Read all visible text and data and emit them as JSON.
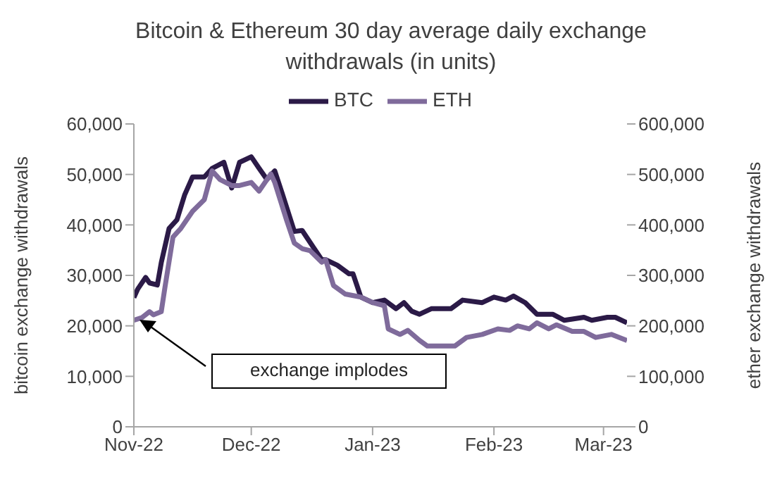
{
  "chart_data": {
    "type": "line",
    "title": "Bitcoin & Ethereum 30 day average daily exchange withdrawals (in units)",
    "ylabel": "bitcoin exchange withdrawals",
    "y2label": "ether exchange withdrawals",
    "xlim": [
      "2022-11-01",
      "2023-03-07"
    ],
    "xticks": [
      {
        "value": "2022-11-01",
        "label": "Nov-22"
      },
      {
        "value": "2022-12-01",
        "label": "Dec-22"
      },
      {
        "value": "2023-01-01",
        "label": "Jan-23"
      },
      {
        "value": "2023-02-01",
        "label": "Feb-23"
      },
      {
        "value": "2023-03-01",
        "label": "Mar-23"
      }
    ],
    "ylim": [
      0,
      60000
    ],
    "yticks": [
      0,
      {
        "value": 10000,
        "label": "10,000"
      },
      {
        "value": 20000,
        "label": "20,000"
      },
      {
        "value": 30000,
        "label": "30,000"
      },
      {
        "value": 40000,
        "label": "40,000"
      },
      {
        "value": 50000,
        "label": "50,000"
      },
      {
        "value": 60000,
        "label": "60,000"
      }
    ],
    "y2lim": [
      0,
      600000
    ],
    "y2ticks": [
      0,
      {
        "value": 100000,
        "label": "100,000"
      },
      {
        "value": 200000,
        "label": "200,000"
      },
      {
        "value": 300000,
        "label": "300,000"
      },
      {
        "value": 400000,
        "label": "400,000"
      },
      {
        "value": 500000,
        "label": "500,000"
      },
      {
        "value": 600000,
        "label": "600,000"
      }
    ],
    "legend": "top",
    "line_style": "solid",
    "series": [
      {
        "name": "BTC",
        "color": "#2b1a47",
        "x": [
          "2022-11-01",
          "2022-11-02",
          "2022-11-04",
          "2022-11-05",
          "2022-11-07",
          "2022-11-08",
          "2022-11-10",
          "2022-11-12",
          "2022-11-14",
          "2022-11-16",
          "2022-11-19",
          "2022-11-21",
          "2022-11-24",
          "2022-11-26",
          "2022-11-28",
          "2022-12-01",
          "2022-12-03",
          "2022-12-05",
          "2022-12-07",
          "2022-12-09",
          "2022-12-12",
          "2022-12-14",
          "2022-12-17",
          "2022-12-19",
          "2022-12-20",
          "2022-12-23",
          "2022-12-26",
          "2022-12-27",
          "2022-12-29",
          "2023-01-01",
          "2023-01-04",
          "2023-01-07",
          "2023-01-09",
          "2023-01-11",
          "2023-01-13",
          "2023-01-16",
          "2023-01-21",
          "2023-01-24",
          "2023-01-29",
          "2023-02-01",
          "2023-02-04",
          "2023-02-06",
          "2023-02-09",
          "2023-02-12",
          "2023-02-16",
          "2023-02-19",
          "2023-02-24",
          "2023-02-26",
          "2023-03-02",
          "2023-03-04",
          "2023-03-07"
        ],
        "values": [
          25600,
          27300,
          29600,
          28500,
          28100,
          32500,
          39300,
          41000,
          46000,
          49500,
          49500,
          51200,
          52400,
          47300,
          52400,
          53500,
          51200,
          49000,
          50700,
          46000,
          38700,
          38900,
          35400,
          33100,
          33100,
          32000,
          30300,
          30300,
          25700,
          24600,
          25100,
          23400,
          24600,
          22900,
          22300,
          23400,
          23400,
          25100,
          24600,
          25700,
          25100,
          25900,
          24600,
          22300,
          22300,
          21100,
          21700,
          21100,
          21700,
          21700,
          20600
        ]
      },
      {
        "name": "ETH",
        "color": "#7f6b9b",
        "axis": "y2",
        "x": [
          "2022-11-01",
          "2022-11-03",
          "2022-11-05",
          "2022-11-06",
          "2022-11-08",
          "2022-11-09",
          "2022-11-11",
          "2022-11-13",
          "2022-11-16",
          "2022-11-19",
          "2022-11-21",
          "2022-11-23",
          "2022-11-26",
          "2022-11-28",
          "2022-12-01",
          "2022-12-03",
          "2022-12-06",
          "2022-12-07",
          "2022-12-10",
          "2022-12-12",
          "2022-12-14",
          "2022-12-16",
          "2022-12-19",
          "2022-12-20",
          "2022-12-22",
          "2022-12-25",
          "2022-12-29",
          "2023-01-01",
          "2023-01-04",
          "2023-01-05",
          "2023-01-08",
          "2023-01-10",
          "2023-01-13",
          "2023-01-15",
          "2023-01-19",
          "2023-01-22",
          "2023-01-25",
          "2023-01-29",
          "2023-02-02",
          "2023-02-05",
          "2023-02-07",
          "2023-02-10",
          "2023-02-12",
          "2023-02-15",
          "2023-02-17",
          "2023-02-21",
          "2023-02-24",
          "2023-02-27",
          "2023-03-03",
          "2023-03-07"
        ],
        "values": [
          211000,
          216000,
          228000,
          222000,
          228000,
          279000,
          376000,
          393000,
          427000,
          450000,
          507000,
          490000,
          478000,
          478000,
          484000,
          467000,
          501000,
          484000,
          410000,
          364000,
          353000,
          349000,
          326000,
          331000,
          280000,
          263000,
          257000,
          246000,
          240000,
          194000,
          183000,
          191000,
          171000,
          160000,
          160000,
          160000,
          177000,
          183000,
          194000,
          191000,
          200000,
          194000,
          206000,
          194000,
          202000,
          189000,
          189000,
          177000,
          183000,
          171000
        ]
      }
    ],
    "annotations": [
      "exchange implodes"
    ]
  }
}
